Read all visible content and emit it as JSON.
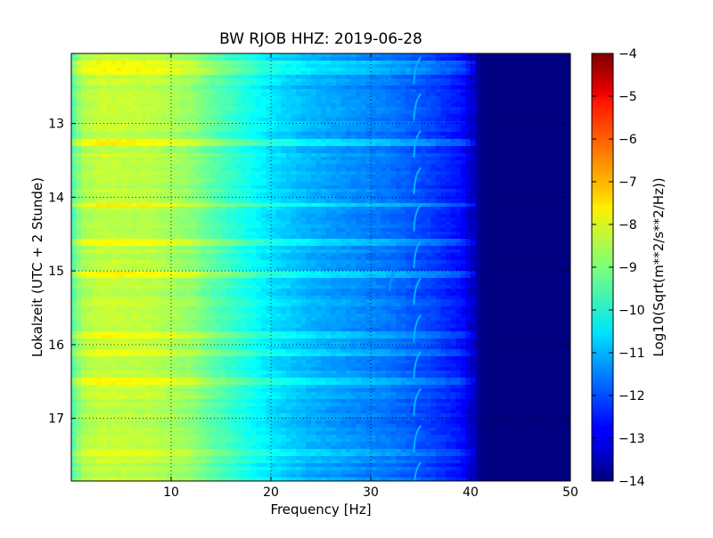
{
  "chart_data": {
    "type": "heatmap",
    "title": "BW RJOB HHZ: 2019-06-28",
    "xlabel": "Frequency [Hz]",
    "ylabel": "Lokalzeit (UTC + 2 Stunde)",
    "xlim": [
      0,
      50
    ],
    "ylim": [
      12.05,
      17.85
    ],
    "x_ticks": [
      10,
      20,
      30,
      40,
      50
    ],
    "y_ticks": [
      13,
      14,
      15,
      16,
      17
    ],
    "grid": true,
    "y_inverted": true,
    "colormap": "jet",
    "colorbar": {
      "label": "Log10(Sqrt(m**2/s**2/Hz))",
      "range": [
        -14,
        -4
      ],
      "ticks": [
        -4,
        -5,
        -6,
        -7,
        -8,
        -9,
        -10,
        -11,
        -12,
        -13,
        -14
      ]
    },
    "spectrum_profile": [
      {
        "f": 0,
        "v": -9.6
      },
      {
        "f": 1,
        "v": -8.6
      },
      {
        "f": 3,
        "v": -8.3
      },
      {
        "f": 8,
        "v": -8.4
      },
      {
        "f": 12,
        "v": -8.8
      },
      {
        "f": 14,
        "v": -9.3
      },
      {
        "f": 16,
        "v": -9.7
      },
      {
        "f": 18,
        "v": -10.1
      },
      {
        "f": 20,
        "v": -10.5
      },
      {
        "f": 24,
        "v": -11.0
      },
      {
        "f": 28,
        "v": -11.3
      },
      {
        "f": 32,
        "v": -11.6
      },
      {
        "f": 36,
        "v": -12.1
      },
      {
        "f": 39,
        "v": -12.6
      },
      {
        "f": 40.5,
        "v": -13.4
      },
      {
        "f": 41,
        "v": -14.0
      },
      {
        "f": 50,
        "v": -14.0
      }
    ],
    "energetic_times": [
      12.2,
      12.3,
      13.25,
      14.1,
      14.6,
      15.05,
      15.85,
      16.1,
      16.5,
      17.45
    ],
    "tonal_lines": [
      {
        "f": 34.5,
        "v": -11.0,
        "pattern": "repeating hook every ~0.5 h"
      },
      {
        "f": 32.0,
        "v": -11.3,
        "pattern": "intermittent"
      }
    ]
  }
}
